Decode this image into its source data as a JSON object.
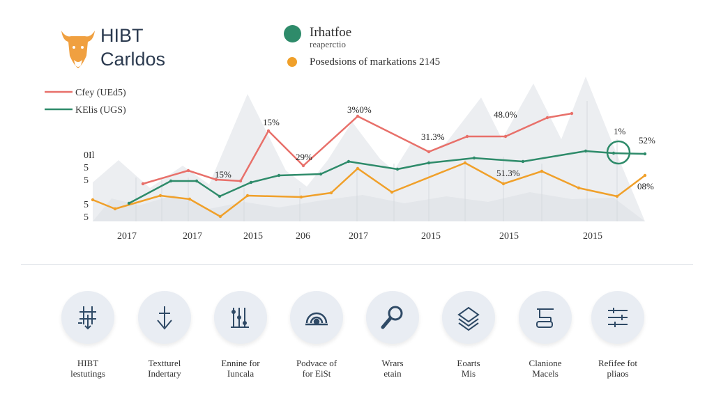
{
  "brand": {
    "line1": "HIBT",
    "line2": "Carldos"
  },
  "top_legend": [
    {
      "label_line1": "Irhatfoe",
      "label_line2": "reaperctio",
      "color": "#2e8b6a"
    },
    {
      "label": "Posedsions of markations 2145",
      "color": "#f0a02a"
    }
  ],
  "chart_data": {
    "type": "line",
    "title": "",
    "xlabel": "",
    "ylabel": "",
    "x_tick_labels": [
      "2017",
      "2017",
      "2015",
      "206",
      "2017",
      "2015",
      "2015",
      "2015"
    ],
    "y_tick_labels": [
      "0Il",
      "5",
      "5",
      "5",
      "5"
    ],
    "grid": false,
    "legend_position": "top-left",
    "colors": {
      "red": "#e8706a",
      "green": "#2e8b6a",
      "orange": "#f0a02a"
    },
    "series": [
      {
        "name": "Cfey (UEd5)",
        "color": "#e8706a",
        "values": [
          [
            205,
            264
          ],
          [
            270,
            245
          ],
          [
            310,
            258
          ],
          [
            345,
            260
          ],
          [
            385,
            188
          ],
          [
            435,
            238
          ],
          [
            513,
            167
          ],
          [
            615,
            218
          ],
          [
            670,
            196
          ],
          [
            725,
            196
          ],
          [
            785,
            169
          ],
          [
            820,
            163
          ]
        ]
      },
      {
        "name": "KElis (UGS)",
        "color": "#2e8b6a",
        "values": [
          [
            185,
            292
          ],
          [
            245,
            260
          ],
          [
            282,
            260
          ],
          [
            315,
            282
          ],
          [
            360,
            262
          ],
          [
            400,
            252
          ],
          [
            460,
            250
          ],
          [
            500,
            232
          ],
          [
            570,
            243
          ],
          [
            615,
            234
          ],
          [
            680,
            227
          ],
          [
            750,
            232
          ],
          [
            840,
            217
          ],
          [
            880,
            220
          ],
          [
            925,
            221
          ]
        ]
      },
      {
        "name": "",
        "color": "#f0a02a",
        "values": [
          [
            133,
            287
          ],
          [
            165,
            300
          ],
          [
            230,
            281
          ],
          [
            272,
            286
          ],
          [
            316,
            311
          ],
          [
            355,
            281
          ],
          [
            432,
            283
          ],
          [
            475,
            277
          ],
          [
            513,
            242
          ],
          [
            562,
            276
          ],
          [
            667,
            234
          ],
          [
            722,
            264
          ],
          [
            777,
            246
          ],
          [
            830,
            270
          ],
          [
            885,
            282
          ],
          [
            925,
            252
          ]
        ]
      }
    ],
    "data_labels": [
      "15%",
      "3%0%",
      "15%",
      "29%",
      "31.3%",
      "48.0%",
      "1%",
      "52%",
      "51.3%",
      "08%"
    ]
  },
  "features": [
    {
      "line1": "HIBT",
      "line2": "lestutings",
      "icon": "crossed-arrows-icon"
    },
    {
      "line1": "Textturel",
      "line2": "Indertary",
      "icon": "anchor-arrow-icon"
    },
    {
      "line1": "Ennine for",
      "line2": "Iuncala",
      "icon": "dotted-columns-icon"
    },
    {
      "line1": "Podvace of",
      "line2": "for EiSt",
      "icon": "spiral-gauge-icon"
    },
    {
      "line1": "Wrars",
      "line2": "etain",
      "icon": "magnifier-icon"
    },
    {
      "line1": "Eoarts",
      "line2": "Mis",
      "icon": "layered-diamond-icon"
    },
    {
      "line1": "Clanione",
      "line2": "Macels",
      "icon": "flow-chart-icon"
    },
    {
      "line1": "Refifee fot",
      "line2": "pliaos",
      "icon": "sliders-icon"
    }
  ]
}
